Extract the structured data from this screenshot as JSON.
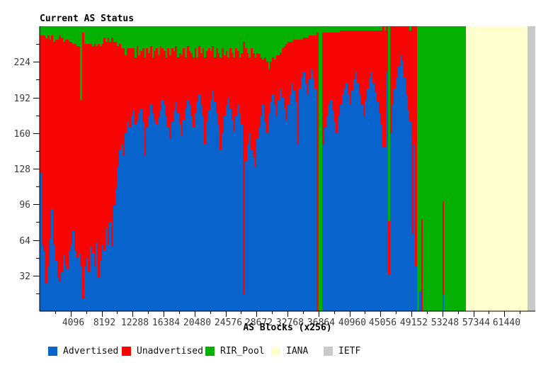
{
  "title": "Current AS Status",
  "chart_data": {
    "type": "bar",
    "stacked": true,
    "title": "Current AS Status",
    "xlabel": "AS Blocks (x256)",
    "ylabel": "",
    "x_range": [
      0,
      65536
    ],
    "y_range": [
      0,
      256
    ],
    "block_size": 256,
    "x_major_ticks": [
      4096,
      8192,
      12288,
      16384,
      20480,
      24576,
      28672,
      32768,
      36864,
      40960,
      45056,
      49152,
      53248,
      57344,
      61440
    ],
    "x_minor_step": 2048,
    "y_major_ticks": [
      32,
      64,
      96,
      128,
      160,
      192,
      224
    ],
    "y_minor_step": 16,
    "grid": false,
    "legend_position": "bottom",
    "legend": [
      {
        "label": "Advertised",
        "color": "#0864cc"
      },
      {
        "label": "Unadvertised",
        "color": "#f80505"
      },
      {
        "label": "RIR_Pool",
        "color": "#04b004"
      },
      {
        "label": "IANA",
        "color": "#ffffcf"
      },
      {
        "label": "IETF",
        "color": "#c9c9c9"
      }
    ],
    "note": "Each bar = one block of 256 AS numbers. Stack bottom-up: Advertised, Unadvertised, RIR_Pool remainder to 256. IANA/IETF region blocks are solid full-height.",
    "bars_adv_unadv": [
      [
        124,
        124
      ],
      [
        60,
        188
      ],
      [
        55,
        193
      ],
      [
        25,
        220
      ],
      [
        40,
        208
      ],
      [
        65,
        179
      ],
      [
        92,
        156
      ],
      [
        60,
        182
      ],
      [
        45,
        199
      ],
      [
        30,
        214
      ],
      [
        26,
        222
      ],
      [
        35,
        211
      ],
      [
        50,
        192
      ],
      [
        42,
        202
      ],
      [
        38,
        206
      ],
      [
        55,
        187
      ],
      [
        60,
        182
      ],
      [
        72,
        168
      ],
      [
        55,
        185
      ],
      [
        48,
        190
      ],
      [
        52,
        186
      ],
      [
        40,
        150
      ],
      [
        11,
        239
      ],
      [
        40,
        200
      ],
      [
        48,
        192
      ],
      [
        35,
        205
      ],
      [
        58,
        182
      ],
      [
        52,
        186
      ],
      [
        40,
        200
      ],
      [
        62,
        176
      ],
      [
        30,
        210
      ],
      [
        45,
        193
      ],
      [
        60,
        180
      ],
      [
        55,
        191
      ],
      [
        75,
        167
      ],
      [
        60,
        186
      ],
      [
        80,
        162
      ],
      [
        58,
        188
      ],
      [
        95,
        147
      ],
      [
        110,
        132
      ],
      [
        130,
        108
      ],
      [
        145,
        95
      ],
      [
        150,
        86
      ],
      [
        140,
        96
      ],
      [
        160,
        70
      ],
      [
        170,
        66
      ],
      [
        165,
        71
      ],
      [
        175,
        61
      ],
      [
        180,
        56
      ],
      [
        168,
        60
      ],
      [
        172,
        66
      ],
      [
        178,
        52
      ],
      [
        182,
        52
      ],
      [
        170,
        66
      ],
      [
        140,
        88
      ],
      [
        165,
        71
      ],
      [
        175,
        57
      ],
      [
        185,
        53
      ],
      [
        178,
        50
      ],
      [
        172,
        62
      ],
      [
        168,
        68
      ],
      [
        174,
        56
      ],
      [
        180,
        58
      ],
      [
        190,
        46
      ],
      [
        185,
        49
      ],
      [
        175,
        53
      ],
      [
        165,
        71
      ],
      [
        155,
        75
      ],
      [
        170,
        66
      ],
      [
        180,
        54
      ],
      [
        188,
        50
      ],
      [
        178,
        50
      ],
      [
        168,
        64
      ],
      [
        158,
        72
      ],
      [
        172,
        64
      ],
      [
        182,
        46
      ],
      [
        190,
        48
      ],
      [
        185,
        49
      ],
      [
        175,
        57
      ],
      [
        165,
        63
      ],
      [
        178,
        58
      ],
      [
        188,
        40
      ],
      [
        195,
        43
      ],
      [
        185,
        47
      ],
      [
        175,
        61
      ],
      [
        150,
        78
      ],
      [
        170,
        64
      ],
      [
        180,
        56
      ],
      [
        190,
        44
      ],
      [
        198,
        40
      ],
      [
        188,
        40
      ],
      [
        178,
        58
      ],
      [
        168,
        64
      ],
      [
        145,
        83
      ],
      [
        160,
        76
      ],
      [
        175,
        55
      ],
      [
        185,
        49
      ],
      [
        192,
        36
      ],
      [
        182,
        54
      ],
      [
        172,
        60
      ],
      [
        162,
        66
      ],
      [
        176,
        60
      ],
      [
        186,
        48
      ],
      [
        178,
        50
      ],
      [
        168,
        64
      ],
      [
        15,
        227
      ],
      [
        135,
        101
      ],
      [
        150,
        82
      ],
      [
        160,
        68
      ],
      [
        145,
        91
      ],
      [
        138,
        94
      ],
      [
        130,
        98
      ],
      [
        155,
        77
      ],
      [
        165,
        66
      ],
      [
        175,
        53
      ],
      [
        185,
        41
      ],
      [
        170,
        58
      ],
      [
        160,
        64
      ],
      [
        178,
        40
      ],
      [
        188,
        36
      ],
      [
        195,
        33
      ],
      [
        185,
        41
      ],
      [
        175,
        55
      ],
      [
        190,
        40
      ],
      [
        200,
        32
      ],
      [
        192,
        44
      ],
      [
        182,
        56
      ],
      [
        172,
        68
      ],
      [
        185,
        57
      ],
      [
        195,
        47
      ],
      [
        205,
        37
      ],
      [
        198,
        46
      ],
      [
        188,
        56
      ],
      [
        150,
        94
      ],
      [
        200,
        44
      ],
      [
        210,
        34
      ],
      [
        215,
        31
      ],
      [
        205,
        41
      ],
      [
        195,
        51
      ],
      [
        208,
        40
      ],
      [
        218,
        30
      ],
      [
        210,
        38
      ],
      [
        200,
        48
      ],
      [
        0,
        250
      ],
      [
        0,
        0
      ],
      [
        0,
        0
      ],
      [
        150,
        100
      ],
      [
        165,
        85
      ],
      [
        175,
        75
      ],
      [
        185,
        65
      ],
      [
        190,
        60
      ],
      [
        180,
        70
      ],
      [
        170,
        80
      ],
      [
        160,
        90
      ],
      [
        175,
        75
      ],
      [
        185,
        67
      ],
      [
        195,
        57
      ],
      [
        200,
        52
      ],
      [
        205,
        47
      ],
      [
        195,
        57
      ],
      [
        185,
        67
      ],
      [
        198,
        54
      ],
      [
        208,
        44
      ],
      [
        215,
        37
      ],
      [
        205,
        47
      ],
      [
        195,
        57
      ],
      [
        185,
        67
      ],
      [
        175,
        77
      ],
      [
        190,
        62
      ],
      [
        200,
        52
      ],
      [
        210,
        42
      ],
      [
        215,
        37
      ],
      [
        205,
        47
      ],
      [
        197,
        55
      ],
      [
        188,
        64
      ],
      [
        178,
        74
      ],
      [
        168,
        84
      ],
      [
        147,
        109
      ],
      [
        147,
        105
      ],
      [
        215,
        41
      ],
      [
        33,
        48
      ],
      [
        160,
        96
      ],
      [
        185,
        71
      ],
      [
        200,
        56
      ],
      [
        210,
        46
      ],
      [
        220,
        36
      ],
      [
        230,
        26
      ],
      [
        225,
        31
      ],
      [
        210,
        46
      ],
      [
        195,
        61
      ],
      [
        180,
        76
      ],
      [
        170,
        82
      ],
      [
        70,
        186
      ],
      [
        150,
        106
      ],
      [
        40,
        216
      ],
      [
        0,
        0
      ],
      [
        18,
        0
      ],
      [
        0,
        83
      ],
      [
        0,
        0
      ],
      [
        0,
        0
      ],
      [
        0,
        0
      ],
      [
        0,
        0
      ],
      [
        0,
        0
      ],
      [
        0,
        0
      ],
      [
        0,
        0
      ],
      [
        0,
        0
      ],
      [
        0,
        0
      ],
      [
        0,
        0
      ],
      [
        15,
        84
      ],
      [
        0,
        0
      ],
      [
        0,
        0
      ],
      [
        0,
        0
      ],
      [
        0,
        0
      ],
      [
        0,
        0
      ],
      [
        0,
        0
      ],
      [
        0,
        0
      ],
      [
        0,
        0
      ],
      [
        0,
        0
      ],
      [
        0,
        0
      ],
      [
        0,
        0
      ]
    ],
    "regions": {
      "iana_blocks": [
        220,
        252
      ],
      "ietf_blocks": [
        252,
        256
      ]
    }
  },
  "colors": {
    "advertised": "#0864cc",
    "unadvertised": "#f80505",
    "rir_pool": "#04b004",
    "iana": "#ffffcf",
    "ietf": "#c9c9c9",
    "axis": "#000000",
    "tick_label": "#3a3a3a"
  }
}
